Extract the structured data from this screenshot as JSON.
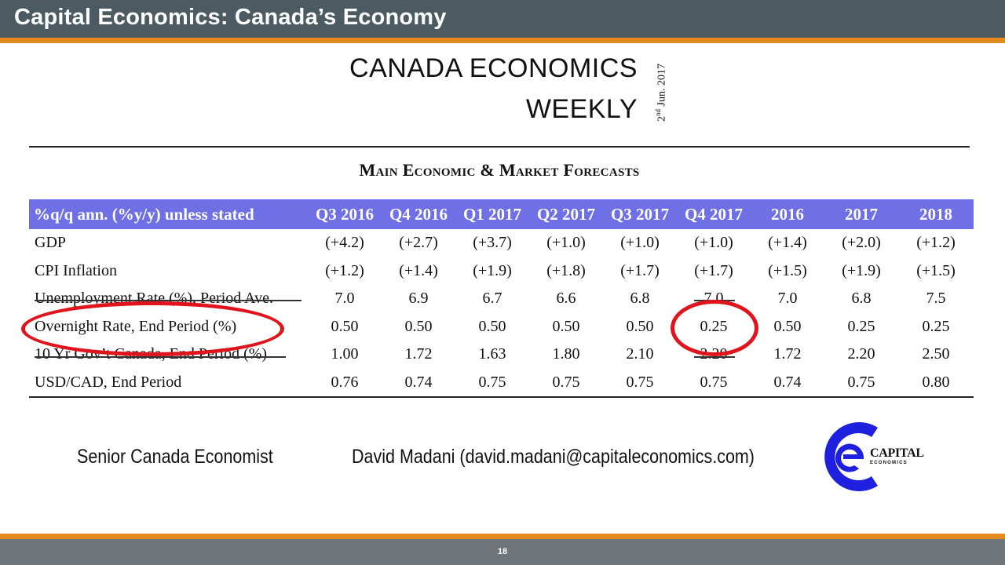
{
  "header": {
    "title": "Capital Economics: Canada’s Economy"
  },
  "publication": {
    "title_line1": "CANADA ECONOMICS",
    "title_line2": "WEEKLY",
    "date_day": "2",
    "date_suffix": "nd",
    "date_rest": " Jun. 2017"
  },
  "section_title": "Main Economic & Market Forecasts",
  "forecast_table": {
    "columns": [
      "%q/q ann. (%y/y) unless stated",
      "Q3 2016",
      "Q4 2016",
      "Q1 2017",
      "Q2 2017",
      "Q3 2017",
      "Q4 2017",
      "2016",
      "2017",
      "2018"
    ],
    "rows": [
      {
        "label": "GDP",
        "values": [
          "(+4.2)",
          "(+2.7)",
          "(+3.7)",
          "(+1.0)",
          "(+1.0)",
          "(+1.0)",
          "(+1.4)",
          "(+2.0)",
          "(+1.2)"
        ]
      },
      {
        "label": "CPI Inflation",
        "values": [
          "(+1.2)",
          "(+1.4)",
          "(+1.9)",
          "(+1.8)",
          "(+1.7)",
          "(+1.7)",
          "(+1.5)",
          "(+1.9)",
          "(+1.5)"
        ]
      },
      {
        "label": "Unemployment Rate (%), Period Ave.",
        "values": [
          "7.0",
          "6.9",
          "6.7",
          "6.6",
          "6.8",
          "7.0",
          "7.0",
          "6.8",
          "7.5"
        ]
      },
      {
        "label": "Overnight Rate, End Period (%)",
        "values": [
          "0.50",
          "0.50",
          "0.50",
          "0.50",
          "0.50",
          "0.25",
          "0.50",
          "0.25",
          "0.25"
        ]
      },
      {
        "label": "10 Yr Gov’t Canada, End Period (%)",
        "values": [
          "1.00",
          "1.72",
          "1.63",
          "1.80",
          "2.10",
          "2.20",
          "1.72",
          "2.20",
          "2.50"
        ]
      },
      {
        "label": "USD/CAD, End Period",
        "values": [
          "0.76",
          "0.74",
          "0.75",
          "0.75",
          "0.75",
          "0.75",
          "0.74",
          "0.75",
          "0.80"
        ]
      }
    ]
  },
  "footer": {
    "role": "Senior Canada Economist",
    "contact": "David Madani (david.madani@capitaleconomics.com)"
  },
  "logo": {
    "word": "CAPITAL",
    "sub": "ECONOMICS",
    "colors": {
      "primary": "#1f1fe0",
      "text": "#111111"
    }
  },
  "page_number": "18",
  "colors": {
    "header_bg": "#4c5a61",
    "accent": "#e38b21",
    "table_header": "#6f6fe6",
    "highlight": "#e0141c"
  }
}
